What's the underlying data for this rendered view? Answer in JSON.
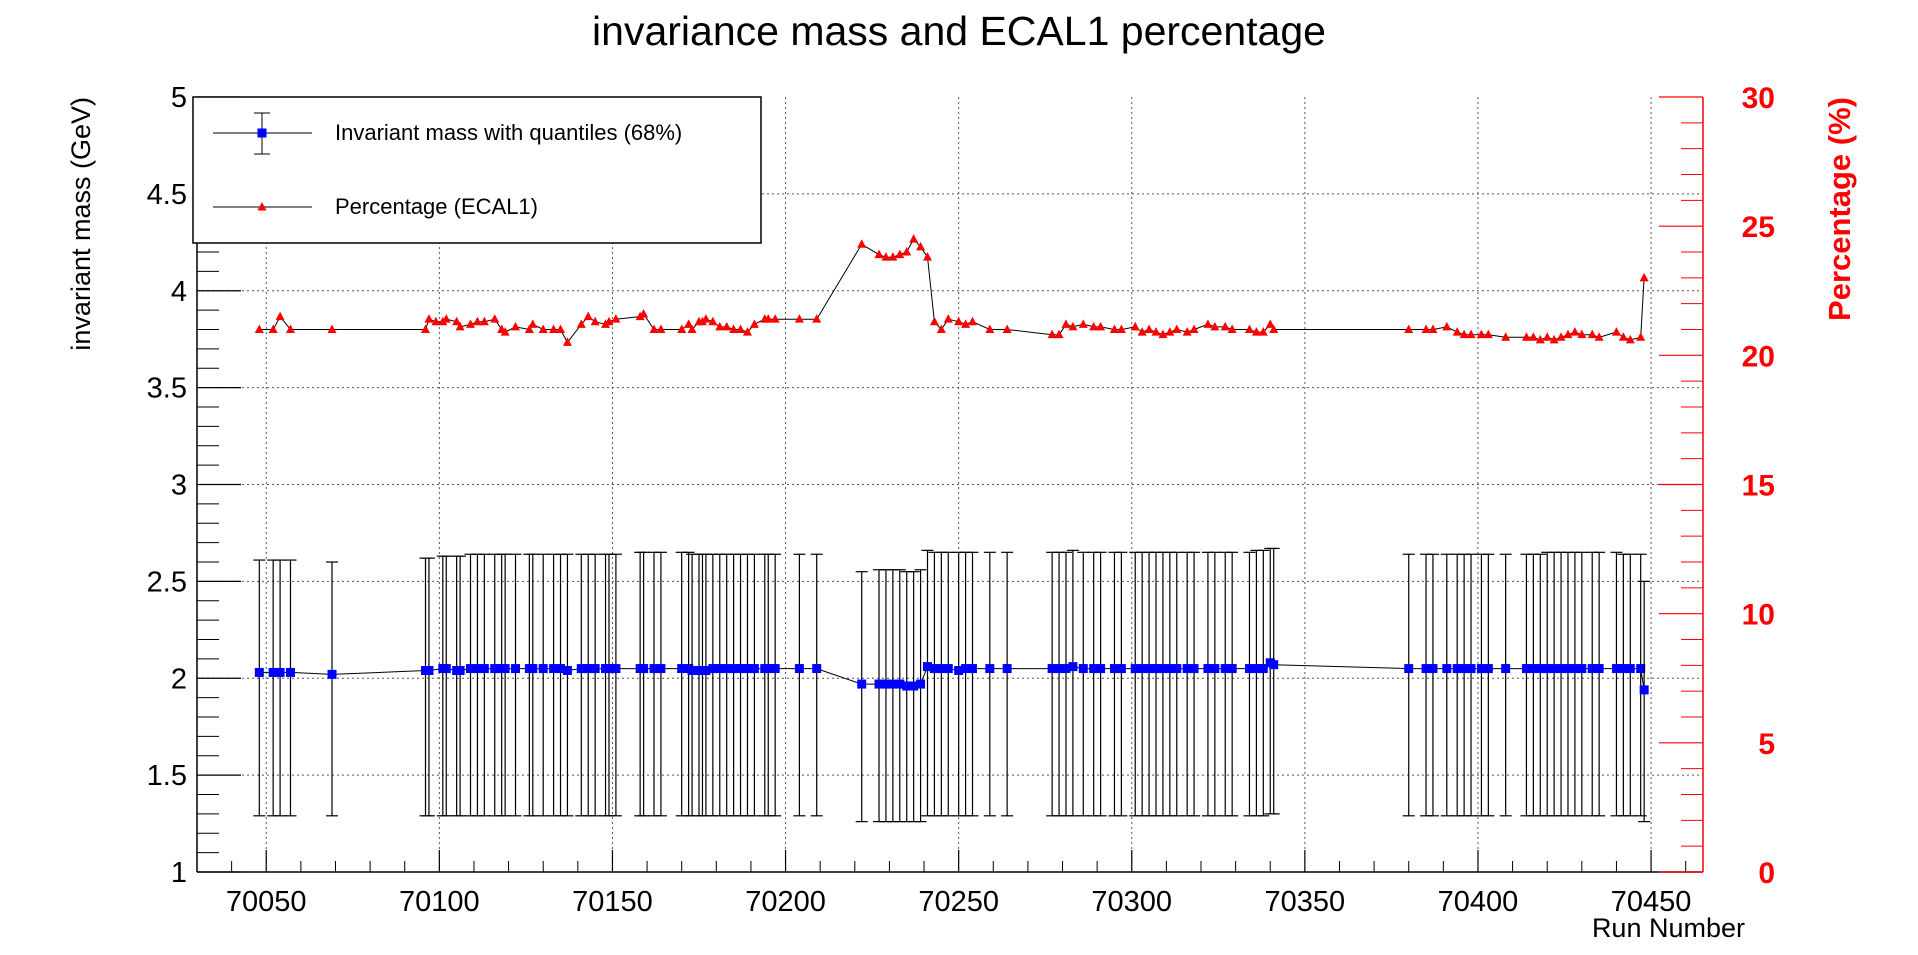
{
  "chart_data": {
    "type": "scatter",
    "title": "invariance mass and ECAL1 percentage",
    "xlabel": "Run Number",
    "ylabel": "invariant mass (GeV)",
    "y2label": "Percentage (%)",
    "xlim": [
      70030,
      70465
    ],
    "ylim": [
      1,
      5
    ],
    "y2lim": [
      0,
      30
    ],
    "x_ticks": [
      "70050",
      "70100",
      "70150",
      "70200",
      "70250",
      "70300",
      "70350",
      "70400",
      "70450"
    ],
    "y_ticks": [
      "1",
      "1.5",
      "2",
      "2.5",
      "3",
      "3.5",
      "4",
      "4.5",
      "5"
    ],
    "y2_ticks": [
      "0",
      "5",
      "10",
      "15",
      "20",
      "25",
      "30"
    ],
    "grid": true,
    "legend_position": "top-left",
    "colors": {
      "mass": "#0000ff",
      "percentage": "#ff0000",
      "axis_right": "#ff0000",
      "line": "#000000"
    },
    "series": [
      {
        "name": "Invariant mass with quantiles (68%)",
        "axis": "left",
        "marker": "square",
        "x": [
          70048,
          70052,
          70054,
          70057,
          70069,
          70096,
          70097,
          70101,
          70102,
          70105,
          70106,
          70109,
          70111,
          70113,
          70116,
          70118,
          70119,
          70122,
          70126,
          70127,
          70130,
          70133,
          70135,
          70137,
          70141,
          70143,
          70145,
          70148,
          70149,
          70151,
          70158,
          70159,
          70162,
          70164,
          70170,
          70172,
          70173,
          70175,
          70176,
          70177,
          70179,
          70181,
          70183,
          70185,
          70187,
          70189,
          70191,
          70194,
          70195,
          70197,
          70204,
          70209,
          70222,
          70227,
          70229,
          70231,
          70233,
          70235,
          70237,
          70239,
          70241,
          70243,
          70245,
          70247,
          70250,
          70252,
          70254,
          70259,
          70264,
          70277,
          70279,
          70281,
          70283,
          70286,
          70289,
          70291,
          70295,
          70297,
          70301,
          70303,
          70305,
          70307,
          70309,
          70311,
          70313,
          70316,
          70318,
          70322,
          70324,
          70327,
          70329,
          70334,
          70336,
          70338,
          70340,
          70341,
          70380,
          70385,
          70387,
          70391,
          70394,
          70396,
          70398,
          70401,
          70403,
          70408,
          70414,
          70416,
          70418,
          70420,
          70422,
          70424,
          70426,
          70428,
          70430,
          70433,
          70435,
          70440,
          70442,
          70444,
          70447,
          70448
        ],
        "y": [
          2.03,
          2.03,
          2.03,
          2.03,
          2.02,
          2.04,
          2.04,
          2.05,
          2.05,
          2.04,
          2.04,
          2.05,
          2.05,
          2.05,
          2.05,
          2.05,
          2.05,
          2.05,
          2.05,
          2.05,
          2.05,
          2.05,
          2.05,
          2.04,
          2.05,
          2.05,
          2.05,
          2.05,
          2.05,
          2.05,
          2.05,
          2.05,
          2.05,
          2.05,
          2.05,
          2.05,
          2.04,
          2.04,
          2.04,
          2.04,
          2.05,
          2.05,
          2.05,
          2.05,
          2.05,
          2.05,
          2.05,
          2.05,
          2.05,
          2.05,
          2.05,
          2.05,
          1.97,
          1.97,
          1.97,
          1.97,
          1.97,
          1.96,
          1.96,
          1.97,
          2.06,
          2.05,
          2.05,
          2.05,
          2.04,
          2.05,
          2.05,
          2.05,
          2.05,
          2.05,
          2.05,
          2.05,
          2.06,
          2.05,
          2.05,
          2.05,
          2.05,
          2.05,
          2.05,
          2.05,
          2.05,
          2.05,
          2.05,
          2.05,
          2.05,
          2.05,
          2.05,
          2.05,
          2.05,
          2.05,
          2.05,
          2.05,
          2.05,
          2.05,
          2.08,
          2.07,
          2.05,
          2.05,
          2.05,
          2.05,
          2.05,
          2.05,
          2.05,
          2.05,
          2.05,
          2.05,
          2.05,
          2.05,
          2.05,
          2.05,
          2.05,
          2.05,
          2.05,
          2.05,
          2.05,
          2.05,
          2.05,
          2.05,
          2.05,
          2.05,
          2.05,
          1.94
        ],
        "err_low": [
          1.29,
          1.29,
          1.29,
          1.29,
          1.29,
          1.29,
          1.29,
          1.29,
          1.29,
          1.29,
          1.29,
          1.29,
          1.29,
          1.29,
          1.29,
          1.29,
          1.29,
          1.29,
          1.29,
          1.29,
          1.29,
          1.29,
          1.29,
          1.29,
          1.29,
          1.29,
          1.29,
          1.29,
          1.29,
          1.29,
          1.29,
          1.29,
          1.29,
          1.29,
          1.29,
          1.29,
          1.29,
          1.29,
          1.29,
          1.29,
          1.29,
          1.29,
          1.29,
          1.29,
          1.29,
          1.29,
          1.29,
          1.29,
          1.29,
          1.29,
          1.29,
          1.29,
          1.26,
          1.26,
          1.26,
          1.26,
          1.26,
          1.26,
          1.26,
          1.26,
          1.29,
          1.29,
          1.29,
          1.29,
          1.29,
          1.29,
          1.29,
          1.29,
          1.29,
          1.29,
          1.29,
          1.29,
          1.29,
          1.29,
          1.29,
          1.29,
          1.29,
          1.29,
          1.29,
          1.29,
          1.29,
          1.29,
          1.29,
          1.29,
          1.29,
          1.29,
          1.29,
          1.29,
          1.29,
          1.29,
          1.29,
          1.29,
          1.29,
          1.29,
          1.3,
          1.3,
          1.29,
          1.29,
          1.29,
          1.29,
          1.29,
          1.29,
          1.29,
          1.29,
          1.29,
          1.29,
          1.29,
          1.29,
          1.29,
          1.29,
          1.29,
          1.29,
          1.29,
          1.29,
          1.29,
          1.29,
          1.29,
          1.29,
          1.29,
          1.29,
          1.29,
          1.26
        ],
        "err_high": [
          2.61,
          2.61,
          2.61,
          2.61,
          2.6,
          2.62,
          2.62,
          2.63,
          2.63,
          2.63,
          2.63,
          2.64,
          2.64,
          2.64,
          2.64,
          2.64,
          2.64,
          2.64,
          2.64,
          2.64,
          2.64,
          2.64,
          2.64,
          2.64,
          2.64,
          2.64,
          2.64,
          2.64,
          2.64,
          2.64,
          2.65,
          2.65,
          2.65,
          2.65,
          2.65,
          2.65,
          2.64,
          2.64,
          2.64,
          2.64,
          2.64,
          2.64,
          2.64,
          2.64,
          2.64,
          2.64,
          2.64,
          2.64,
          2.64,
          2.64,
          2.64,
          2.64,
          2.55,
          2.56,
          2.56,
          2.56,
          2.56,
          2.55,
          2.55,
          2.56,
          2.66,
          2.65,
          2.65,
          2.65,
          2.65,
          2.65,
          2.65,
          2.65,
          2.65,
          2.65,
          2.65,
          2.65,
          2.66,
          2.65,
          2.65,
          2.65,
          2.65,
          2.65,
          2.65,
          2.65,
          2.65,
          2.65,
          2.65,
          2.65,
          2.65,
          2.65,
          2.65,
          2.65,
          2.65,
          2.65,
          2.65,
          2.65,
          2.66,
          2.66,
          2.67,
          2.67,
          2.64,
          2.64,
          2.64,
          2.64,
          2.64,
          2.64,
          2.64,
          2.64,
          2.64,
          2.64,
          2.64,
          2.64,
          2.64,
          2.65,
          2.65,
          2.65,
          2.65,
          2.65,
          2.65,
          2.65,
          2.65,
          2.65,
          2.64,
          2.64,
          2.64,
          2.5
        ]
      },
      {
        "name": "Percentage (ECAL1)",
        "axis": "right",
        "marker": "triangle",
        "x": [
          70048,
          70052,
          70054,
          70057,
          70069,
          70096,
          70097,
          70099,
          70101,
          70102,
          70105,
          70106,
          70109,
          70111,
          70113,
          70116,
          70118,
          70119,
          70122,
          70126,
          70127,
          70130,
          70133,
          70135,
          70137,
          70141,
          70143,
          70145,
          70148,
          70149,
          70151,
          70158,
          70159,
          70162,
          70164,
          70170,
          70172,
          70173,
          70175,
          70176,
          70177,
          70179,
          70181,
          70183,
          70185,
          70187,
          70189,
          70191,
          70194,
          70195,
          70197,
          70204,
          70209,
          70222,
          70227,
          70229,
          70231,
          70233,
          70235,
          70237,
          70239,
          70241,
          70243,
          70245,
          70247,
          70250,
          70252,
          70254,
          70259,
          70264,
          70277,
          70279,
          70281,
          70283,
          70286,
          70289,
          70291,
          70295,
          70297,
          70301,
          70303,
          70305,
          70307,
          70309,
          70311,
          70313,
          70316,
          70318,
          70322,
          70324,
          70327,
          70329,
          70334,
          70336,
          70338,
          70340,
          70341,
          70380,
          70385,
          70387,
          70391,
          70394,
          70396,
          70398,
          70401,
          70403,
          70408,
          70414,
          70416,
          70418,
          70420,
          70422,
          70424,
          70426,
          70428,
          70430,
          70433,
          70435,
          70440,
          70442,
          70444,
          70447,
          70448
        ],
        "y": [
          21.0,
          21.0,
          21.5,
          21.0,
          21.0,
          21.0,
          21.4,
          21.3,
          21.3,
          21.4,
          21.3,
          21.1,
          21.2,
          21.3,
          21.3,
          21.4,
          21.0,
          20.9,
          21.1,
          21.0,
          21.2,
          21.0,
          21.0,
          21.0,
          20.5,
          21.2,
          21.5,
          21.3,
          21.2,
          21.3,
          21.4,
          21.5,
          21.6,
          21.0,
          21.0,
          21.0,
          21.2,
          21.0,
          21.3,
          21.3,
          21.4,
          21.3,
          21.1,
          21.1,
          21.0,
          21.0,
          20.9,
          21.2,
          21.4,
          21.4,
          21.4,
          21.4,
          21.4,
          24.3,
          23.9,
          23.8,
          23.8,
          23.9,
          24.0,
          24.5,
          24.2,
          23.8,
          21.3,
          21.0,
          21.4,
          21.3,
          21.2,
          21.3,
          21.0,
          21.0,
          20.8,
          20.8,
          21.2,
          21.1,
          21.2,
          21.1,
          21.1,
          21.0,
          21.0,
          21.1,
          20.9,
          21.0,
          20.9,
          20.8,
          20.9,
          21.0,
          20.9,
          21.0,
          21.2,
          21.1,
          21.1,
          21.0,
          21.0,
          20.9,
          20.9,
          21.2,
          21.0,
          21.0,
          21.0,
          21.0,
          21.1,
          20.9,
          20.8,
          20.8,
          20.8,
          20.8,
          20.7,
          20.7,
          20.7,
          20.6,
          20.7,
          20.6,
          20.7,
          20.8,
          20.9,
          20.8,
          20.8,
          20.7,
          20.9,
          20.7,
          20.6,
          20.7,
          23.0
        ]
      }
    ]
  }
}
